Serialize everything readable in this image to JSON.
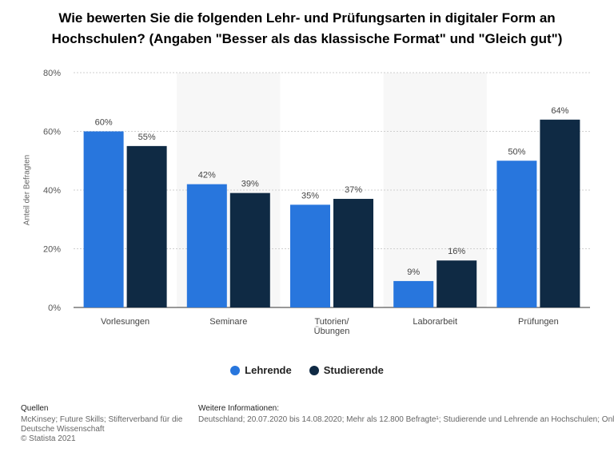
{
  "title_line1": "Wie bewerten Sie die folgenden Lehr- und Prüfungsarten in digitaler Form an",
  "title_line2": "Hochschulen? (Angaben \"Besser als das klassische Format\" und \"Gleich gut\")",
  "colors": {
    "lehrende": "#2876dd",
    "studierende": "#0f2a44"
  },
  "chart_data": {
    "type": "bar",
    "categories": [
      "Vorlesungen",
      "Seminare",
      "Tutorien/\nÜbungen",
      "Laborarbeit",
      "Prüfungen"
    ],
    "series": [
      {
        "name": "Lehrende",
        "values": [
          60,
          42,
          35,
          9,
          50
        ],
        "labels": [
          "60%",
          "42%",
          "35%",
          "9%",
          "50%"
        ]
      },
      {
        "name": "Studierende",
        "values": [
          55,
          39,
          37,
          16,
          64
        ],
        "labels": [
          "55%",
          "39%",
          "37%",
          "16%",
          "64%"
        ]
      }
    ],
    "ylabel": "Anteil der Befragten",
    "ylim": [
      0,
      80
    ],
    "yticks": [
      "0%",
      "20%",
      "40%",
      "60%",
      "80%"
    ],
    "grid": true,
    "legend_position": "bottom"
  },
  "legend": {
    "lehrende": "Lehrende",
    "studierende": "Studierende"
  },
  "footer": {
    "sources_heading": "Quellen",
    "sources_line1": "McKinsey; Future Skills; Stifterverband für die",
    "sources_line2": "Deutsche Wissenschaft",
    "sources_line3": "© Statista 2021",
    "info_heading": "Weitere Informationen:",
    "info_text": "Deutschland; 20.07.2020 bis 14.08.2020; Mehr als 12.800 Befragte¹; Studierende und Lehrende an Hochschulen; Online-Umfrage"
  }
}
